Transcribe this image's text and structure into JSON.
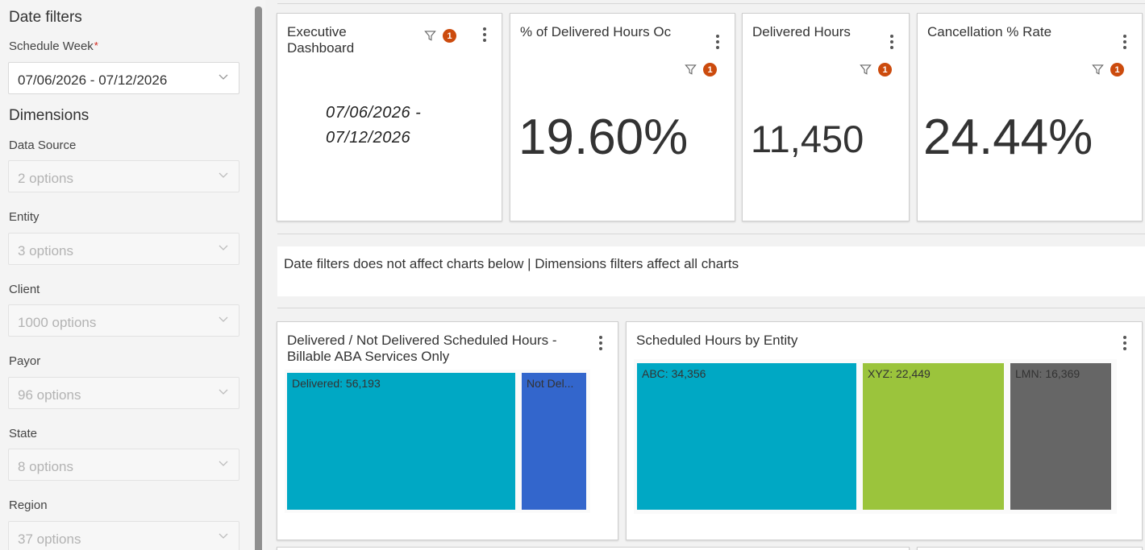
{
  "sidebar": {
    "date_filters_title": "Date filters",
    "schedule_week_label": "Schedule Week",
    "schedule_week_required": "*",
    "schedule_week_value": "07/06/2026 - 07/12/2026",
    "dimensions_title": "Dimensions",
    "filters": [
      {
        "label": "Data Source",
        "value": "2 options"
      },
      {
        "label": "Entity",
        "value": "3 options"
      },
      {
        "label": "Client",
        "value": "1000 options"
      },
      {
        "label": "Payor",
        "value": "96 options"
      },
      {
        "label": "State",
        "value": "8 options"
      },
      {
        "label": "Region",
        "value": "37 options"
      }
    ]
  },
  "kpis": {
    "executive": {
      "title": "Executive Dashboard",
      "date_line1": "07/06/2026 -",
      "date_line2": "07/12/2026",
      "filter_count": "1"
    },
    "delivered_pct": {
      "title": "% of Delivered Hours Oc",
      "value": "19.60%",
      "filter_count": "1"
    },
    "delivered_hours": {
      "title": "Delivered Hours",
      "value": "11,450",
      "filter_count": "1"
    },
    "cancellation": {
      "title": "Cancellation % Rate",
      "value": "24.44%",
      "filter_count": "1"
    }
  },
  "note": "Date filters does not affect charts below | Dimensions filters affect all charts",
  "charts": {
    "delivered_chart": {
      "title_line1": "Delivered / Not Delivered Scheduled Hours -",
      "title_line2": "Billable ABA Services Only",
      "cells": [
        {
          "label": "Delivered: 56,193",
          "color": "#00a8c4"
        },
        {
          "label": "Not Del...",
          "color": "#3366cc"
        }
      ]
    },
    "entity_chart": {
      "title": "Scheduled Hours by Entity",
      "cells": [
        {
          "label": "ABC: 34,356",
          "color": "#00a8c4"
        },
        {
          "label": "XYZ: 22,449",
          "color": "#9bc43c"
        },
        {
          "label": "LMN: 16,369",
          "color": "#666666"
        }
      ]
    }
  },
  "colors": {
    "badge": "#cc4b0d",
    "required": "#d0271d"
  }
}
